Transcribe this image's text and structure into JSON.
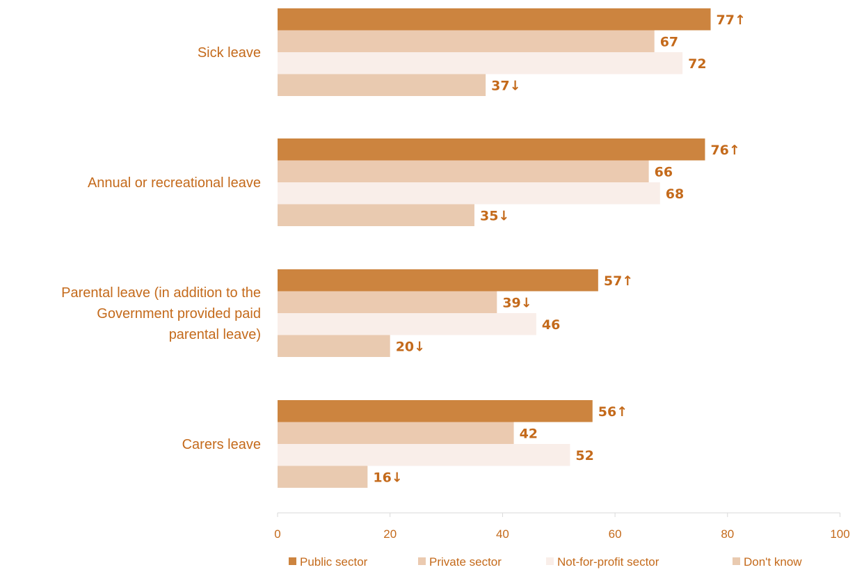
{
  "chart_data": {
    "type": "bar",
    "orientation": "horizontal",
    "categories": [
      [
        "Sick leave"
      ],
      [
        "Annual or recreational leave"
      ],
      [
        "Parental leave (in addition to the",
        "Government provided paid",
        "parental leave)"
      ],
      [
        "Carers leave"
      ]
    ],
    "series": [
      {
        "name": "Public sector",
        "color": "#cc843f",
        "values": [
          77,
          76,
          57,
          56
        ],
        "labels": [
          "77↑",
          "76↑",
          "57↑",
          "56↑"
        ]
      },
      {
        "name": "Private sector",
        "color": "#ebcab0",
        "values": [
          67,
          66,
          39,
          42
        ],
        "labels": [
          "67",
          "66",
          "39↓",
          "42"
        ]
      },
      {
        "name": "Not-for-profit sector",
        "color": "#f9eee9",
        "values": [
          72,
          68,
          46,
          52
        ],
        "labels": [
          "72",
          "68",
          "46",
          "52"
        ]
      },
      {
        "name": "Don't know",
        "color": "#e9cab0",
        "values": [
          37,
          35,
          20,
          16
        ],
        "labels": [
          "37↓",
          "35↓",
          "20↓",
          "16↓"
        ]
      }
    ],
    "xlim": [
      0,
      100
    ],
    "xticks": [
      0,
      20,
      40,
      60,
      80,
      100
    ],
    "title": "",
    "xlabel": "",
    "ylabel": "",
    "grid": false,
    "legend_position": "bottom"
  }
}
